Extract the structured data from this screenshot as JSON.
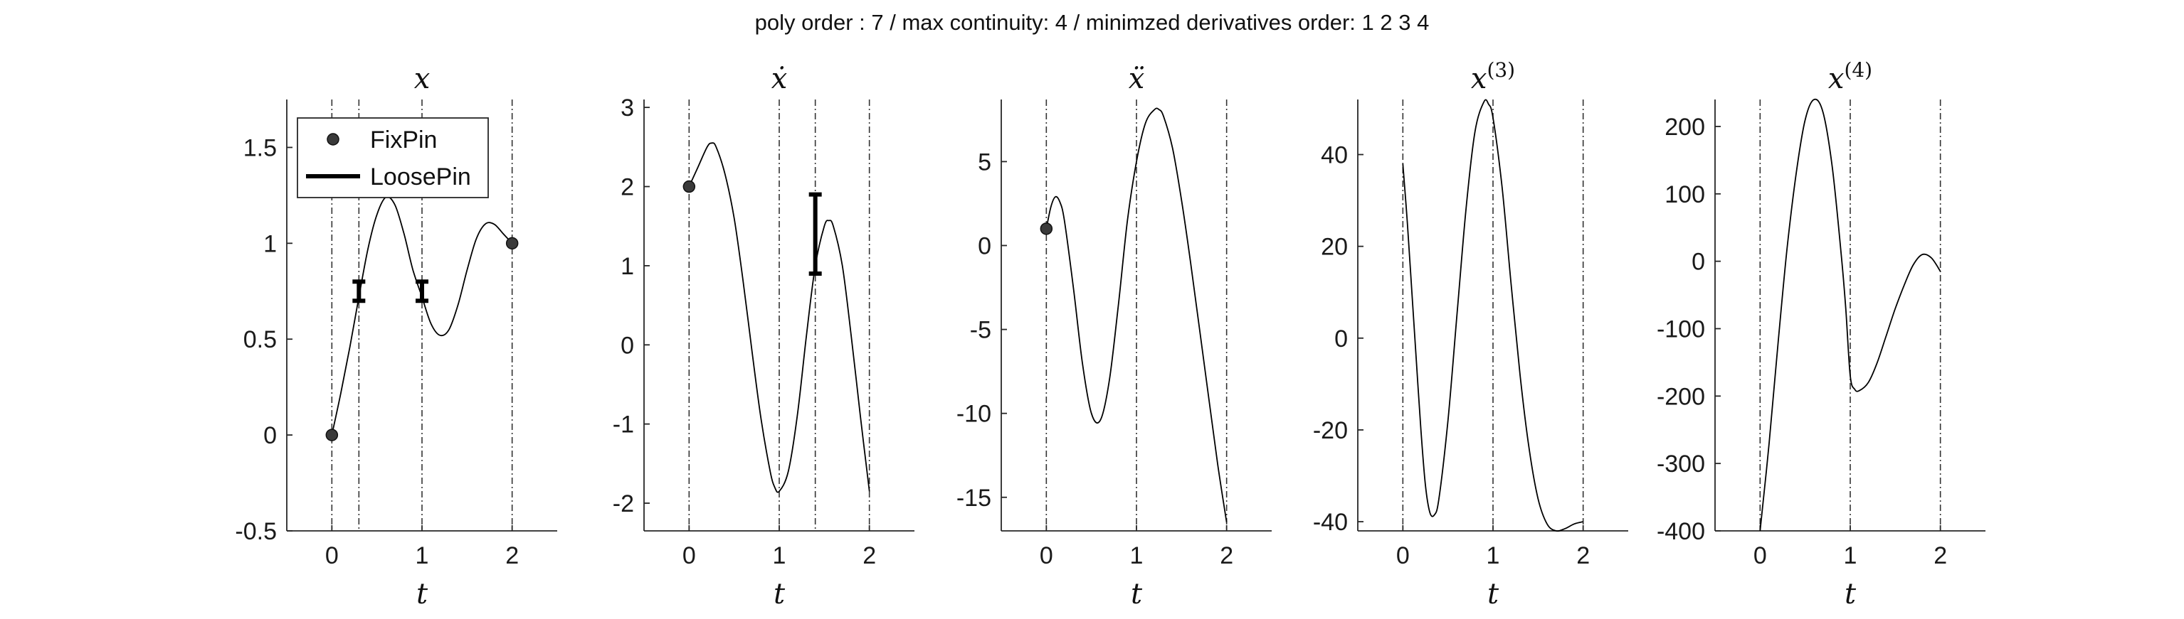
{
  "figure": {
    "suptitle": "poly order : 7 / max continuity: 4 / minimzed derivatives order: 1  2  3  4"
  },
  "legend": {
    "items": [
      {
        "label": "FixPin",
        "marker": "circle"
      },
      {
        "label": "LoosePin",
        "marker": "line"
      }
    ]
  },
  "colors": {
    "curve": "#000000",
    "axis": "#262626",
    "guide": "#333333",
    "pin_fill": "#3a3a3a"
  },
  "chart_data": [
    {
      "type": "line",
      "title": "x",
      "title_sup": "",
      "xlabel": "t",
      "xlim": [
        -0.5,
        2.5
      ],
      "ylim": [
        -0.5,
        1.75
      ],
      "xticks": [
        0,
        1,
        2
      ],
      "yticks": [
        -0.5,
        0,
        0.5,
        1,
        1.5
      ],
      "ytick_labels": [
        "-0.5",
        "0",
        "0.5",
        "1",
        "1.5"
      ],
      "grid": false,
      "knot_lines": [
        0,
        0.3,
        1.0,
        2.0
      ],
      "legend": "top-left",
      "series": [
        {
          "x": [
            0,
            0.1,
            0.2,
            0.3,
            0.4,
            0.5,
            0.6,
            0.7,
            0.8,
            0.9,
            1.0,
            1.1,
            1.2,
            1.3,
            1.4,
            1.5,
            1.6,
            1.7,
            1.8,
            1.9,
            2.0
          ],
          "y": [
            0,
            0.22,
            0.46,
            0.72,
            0.97,
            1.15,
            1.24,
            1.2,
            1.05,
            0.86,
            0.72,
            0.58,
            0.52,
            0.55,
            0.68,
            0.86,
            1.02,
            1.1,
            1.1,
            1.05,
            1.0
          ]
        }
      ],
      "fix_pins": [
        {
          "x": 0,
          "y": 0
        },
        {
          "x": 2,
          "y": 1
        }
      ],
      "loose_pins": [
        {
          "x": 0.3,
          "ymin": 0.7,
          "ymax": 0.8
        },
        {
          "x": 1.0,
          "ymin": 0.7,
          "ymax": 0.8
        }
      ]
    },
    {
      "type": "line",
      "title": "ẋ",
      "title_sup": "",
      "xlabel": "t",
      "xlim": [
        -0.5,
        2.5
      ],
      "ylim": [
        -2.35,
        3.1
      ],
      "xticks": [
        0,
        1,
        2
      ],
      "yticks": [
        -2,
        -1,
        0,
        1,
        2,
        3
      ],
      "ytick_labels": [
        "-2",
        "-1",
        "0",
        "1",
        "2",
        "3"
      ],
      "grid": false,
      "knot_lines": [
        0,
        1.0,
        1.4,
        2.0
      ],
      "series": [
        {
          "x": [
            0,
            0.1,
            0.2,
            0.25,
            0.3,
            0.4,
            0.5,
            0.6,
            0.7,
            0.8,
            0.9,
            0.95,
            1.0,
            1.1,
            1.2,
            1.3,
            1.4,
            1.5,
            1.55,
            1.6,
            1.7,
            1.8,
            1.9,
            2.0
          ],
          "y": [
            2.0,
            2.25,
            2.5,
            2.55,
            2.5,
            2.15,
            1.6,
            0.8,
            -0.1,
            -0.95,
            -1.6,
            -1.8,
            -1.85,
            -1.6,
            -0.9,
            0.1,
            1.0,
            1.5,
            1.57,
            1.5,
            1.0,
            0.1,
            -0.9,
            -1.85
          ]
        }
      ],
      "fix_pins": [
        {
          "x": 0,
          "y": 2.0
        }
      ],
      "loose_pins": [
        {
          "x": 1.4,
          "ymin": 0.9,
          "ymax": 1.9
        }
      ]
    },
    {
      "type": "line",
      "title": "ẍ",
      "title_sup": "",
      "xlabel": "t",
      "xlim": [
        -0.5,
        2.5
      ],
      "ylim": [
        -17,
        8.7
      ],
      "xticks": [
        0,
        1,
        2
      ],
      "yticks": [
        -15,
        -10,
        -5,
        0,
        5
      ],
      "ytick_labels": [
        "-15",
        "-10",
        "-5",
        "0",
        "5"
      ],
      "grid": false,
      "knot_lines": [
        0,
        1.0,
        2.0
      ],
      "series": [
        {
          "x": [
            0,
            0.05,
            0.1,
            0.15,
            0.2,
            0.3,
            0.4,
            0.5,
            0.6,
            0.7,
            0.8,
            0.9,
            1.0,
            1.1,
            1.2,
            1.25,
            1.3,
            1.4,
            1.5,
            1.6,
            1.7,
            1.8,
            1.9,
            2.0
          ],
          "y": [
            1.0,
            2.3,
            2.9,
            2.6,
            1.5,
            -2.5,
            -7.0,
            -10.0,
            -10.4,
            -8.0,
            -3.5,
            1.5,
            5.0,
            7.3,
            8.1,
            8.1,
            7.7,
            5.8,
            2.7,
            -1.0,
            -5.0,
            -9.0,
            -13.0,
            -16.5
          ]
        }
      ],
      "fix_pins": [
        {
          "x": 0,
          "y": 1.0
        }
      ],
      "loose_pins": []
    },
    {
      "type": "line",
      "title": "x",
      "title_sup": "(3)",
      "xlabel": "t",
      "xlim": [
        -0.5,
        2.5
      ],
      "ylim": [
        -42,
        52
      ],
      "xticks": [
        0,
        1,
        2
      ],
      "yticks": [
        -40,
        -20,
        0,
        20,
        40
      ],
      "ytick_labels": [
        "-40",
        "-20",
        "0",
        "20",
        "40"
      ],
      "grid": false,
      "knot_lines": [
        0,
        1.0,
        2.0
      ],
      "series": [
        {
          "x": [
            0,
            0.05,
            0.1,
            0.15,
            0.2,
            0.25,
            0.3,
            0.35,
            0.4,
            0.5,
            0.6,
            0.7,
            0.8,
            0.9,
            0.95,
            1.0,
            1.1,
            1.2,
            1.3,
            1.4,
            1.5,
            1.6,
            1.7,
            1.8,
            1.9,
            2.0
          ],
          "y": [
            38,
            25,
            10,
            -5,
            -20,
            -32,
            -38,
            -38.5,
            -35,
            -18,
            5,
            28,
            45,
            51.5,
            51,
            48,
            33,
            12,
            -8,
            -24,
            -35,
            -40.5,
            -42,
            -41.5,
            -40.5,
            -40
          ]
        }
      ],
      "fix_pins": [],
      "loose_pins": []
    },
    {
      "type": "line",
      "title": "x",
      "title_sup": "(4)",
      "xlabel": "t",
      "xlim": [
        -0.5,
        2.5
      ],
      "ylim": [
        -400,
        240
      ],
      "xticks": [
        0,
        1,
        2
      ],
      "yticks": [
        -400,
        -300,
        -200,
        -100,
        0,
        100,
        200
      ],
      "ytick_labels": [
        "-400",
        "-300",
        "-200",
        "-100",
        "0",
        "100",
        "200"
      ],
      "grid": false,
      "knot_lines": [
        0,
        1.0,
        2.0
      ],
      "series": [
        {
          "x": [
            0,
            0.1,
            0.2,
            0.3,
            0.4,
            0.5,
            0.6,
            0.7,
            0.8,
            0.9,
            0.95,
            1.0,
            1.05,
            1.1,
            1.2,
            1.3,
            1.4,
            1.5,
            1.6,
            1.7,
            1.8,
            1.9,
            2.0
          ],
          "y": [
            -400,
            -270,
            -120,
            20,
            130,
            210,
            240,
            220,
            140,
            10,
            -70,
            -170,
            -190,
            -192,
            -180,
            -150,
            -110,
            -70,
            -35,
            -5,
            10,
            5,
            -15
          ]
        }
      ],
      "fix_pins": [],
      "loose_pins": []
    }
  ]
}
